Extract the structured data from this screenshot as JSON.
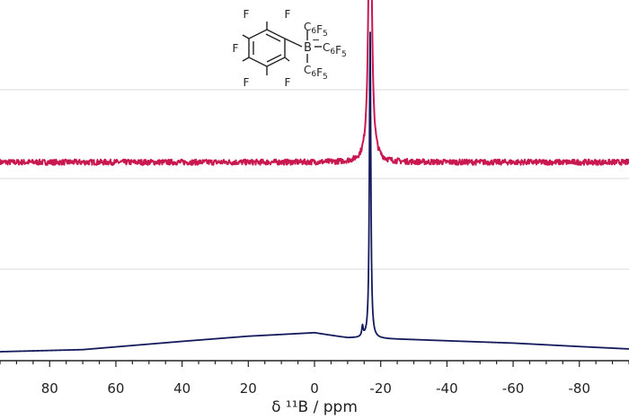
{
  "chart_data": {
    "type": "line",
    "xlabel": "δ ¹¹B / ppm",
    "xlim": [
      95,
      -95
    ],
    "x_ticks": [
      80,
      60,
      40,
      20,
      0,
      -20,
      -40,
      -60,
      -80
    ],
    "x_tick_labels": [
      "80",
      "60",
      "40",
      "20",
      "0",
      "-20",
      "-40",
      "-60",
      "-80"
    ],
    "x_minor_step": 5,
    "ylabel": "",
    "y_ticks_visible": false,
    "grid": "horizontal",
    "legend": "none",
    "series": [
      {
        "color": "#c8184f",
        "baseline": 0.55,
        "noise": 0.008,
        "peaks": [
          {
            "position": -16.8,
            "height": 0.915,
            "width": 0.55
          }
        ]
      },
      {
        "color": "#151a5c",
        "baseline": 0.0,
        "broad_hump": [
          {
            "ppm": 95,
            "value": 0.0
          },
          {
            "ppm": 70,
            "value": 0.006
          },
          {
            "ppm": 40,
            "value": 0.03
          },
          {
            "ppm": 20,
            "value": 0.045
          },
          {
            "ppm": 0,
            "value": 0.055
          },
          {
            "ppm": -10,
            "value": 0.04
          },
          {
            "ppm": -30,
            "value": 0.035
          },
          {
            "ppm": -60,
            "value": 0.025
          },
          {
            "ppm": -80,
            "value": 0.015
          },
          {
            "ppm": -95,
            "value": 0.008
          }
        ],
        "peaks": [
          {
            "position": -16.8,
            "height": 0.9,
            "width": 0.25
          },
          {
            "position": -14.5,
            "height": 0.03,
            "width": 0.25
          }
        ]
      }
    ]
  },
  "structure": {
    "fluorines": [
      "F",
      "F",
      "F",
      "F",
      "F"
    ],
    "boron": "B",
    "charge": "−",
    "substituents": [
      "C6F5",
      "C6F5",
      "C6F5"
    ]
  }
}
